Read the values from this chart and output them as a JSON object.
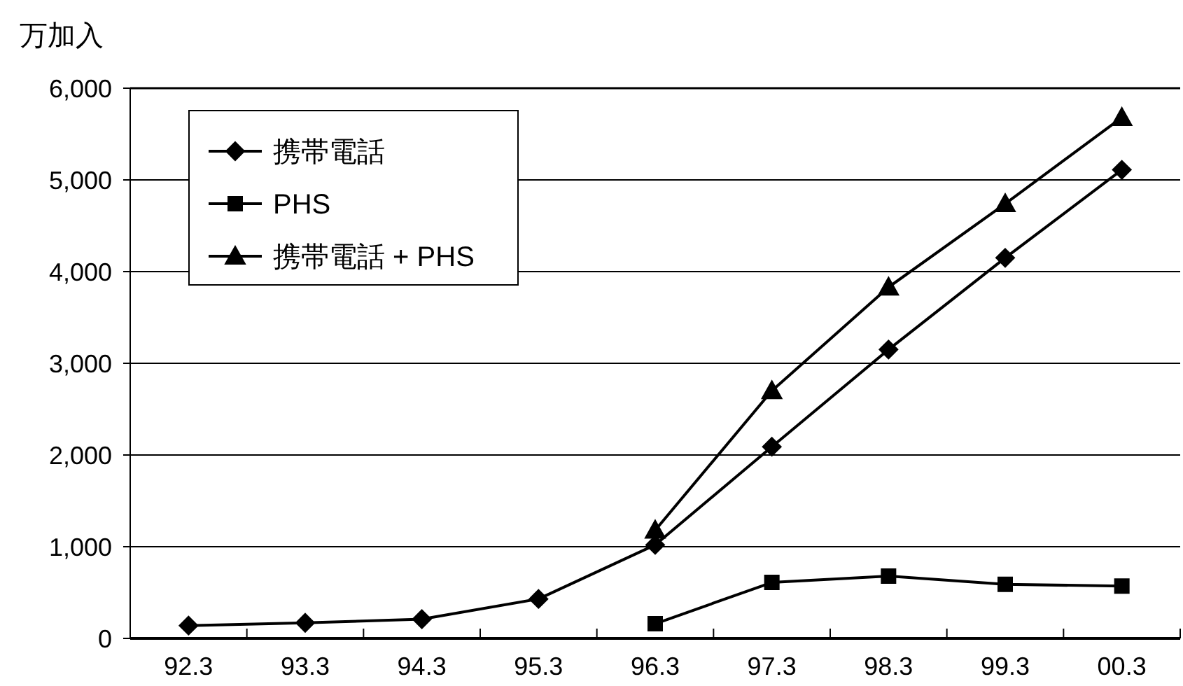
{
  "chart_data": {
    "type": "line",
    "ylabel": "万加入",
    "categories": [
      "92.3",
      "93.3",
      "94.3",
      "95.3",
      "96.3",
      "97.3",
      "98.3",
      "99.3",
      "00.3"
    ],
    "series": [
      {
        "name": "携帯電話",
        "color": "#000000",
        "marker": "diamond",
        "values": [
          140,
          170,
          210,
          430,
          1020,
          2090,
          3150,
          4150,
          5110
        ]
      },
      {
        "name": "PHS",
        "color": "#000000",
        "marker": "square",
        "values": [
          null,
          null,
          null,
          null,
          160,
          610,
          680,
          590,
          570
        ]
      },
      {
        "name": "携帯電話 + PHS",
        "color": "#000000",
        "marker": "triangle",
        "values": [
          null,
          null,
          null,
          null,
          1180,
          2700,
          3830,
          4740,
          5680
        ]
      }
    ],
    "ylim": [
      0,
      6000
    ],
    "yticks": [
      0,
      {
        "value": 1000,
        "label": "1,000"
      },
      {
        "value": 2000,
        "label": "2,000"
      },
      {
        "value": 3000,
        "label": "3,000"
      },
      {
        "value": 4000,
        "label": "4,000"
      },
      {
        "value": 5000,
        "label": "5,000"
      },
      {
        "value": 6000,
        "label": "6,000"
      }
    ],
    "grid": "y",
    "legend": "top left",
    "line_style": "solid"
  }
}
